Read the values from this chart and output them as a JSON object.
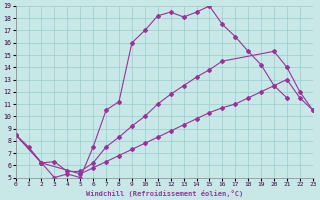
{
  "xlabel": "Windchill (Refroidissement éolien,°C)",
  "bg_color": "#c8e8e8",
  "grid_color": "#99cccc",
  "line_color": "#993399",
  "xlim": [
    0,
    23
  ],
  "ylim": [
    5,
    19
  ],
  "xticks": [
    0,
    1,
    2,
    3,
    4,
    5,
    6,
    7,
    8,
    9,
    10,
    11,
    12,
    13,
    14,
    15,
    16,
    17,
    18,
    19,
    20,
    21,
    22,
    23
  ],
  "yticks": [
    5,
    6,
    7,
    8,
    9,
    10,
    11,
    12,
    13,
    14,
    15,
    16,
    17,
    18,
    19
  ],
  "line1_x": [
    0,
    1,
    2,
    3,
    4,
    5,
    6,
    7,
    8,
    9,
    10,
    11,
    12,
    13,
    14,
    15,
    16,
    17,
    18,
    19,
    20,
    21
  ],
  "line1_y": [
    8.5,
    7.5,
    6.2,
    5.0,
    5.3,
    5.0,
    7.5,
    10.5,
    11.2,
    16.0,
    17.0,
    18.2,
    18.5,
    18.1,
    18.5,
    19.0,
    17.5,
    16.5,
    15.3,
    14.2,
    12.5,
    11.5
  ],
  "line2_x": [
    0,
    2,
    3,
    4,
    5,
    6,
    7,
    8,
    9,
    10,
    11,
    12,
    13,
    14,
    15,
    16,
    20,
    21,
    22,
    23
  ],
  "line2_y": [
    8.5,
    6.2,
    6.3,
    5.5,
    5.5,
    6.2,
    7.5,
    8.3,
    9.2,
    10.0,
    11.0,
    11.8,
    12.5,
    13.2,
    13.8,
    14.5,
    15.3,
    14.0,
    12.0,
    10.5
  ],
  "line3_x": [
    0,
    2,
    5,
    6,
    7,
    8,
    9,
    10,
    11,
    12,
    13,
    14,
    15,
    16,
    17,
    18,
    19,
    20,
    21,
    22,
    23
  ],
  "line3_y": [
    8.5,
    6.2,
    5.3,
    5.8,
    6.3,
    6.8,
    7.3,
    7.8,
    8.3,
    8.8,
    9.3,
    9.8,
    10.3,
    10.7,
    11.0,
    11.5,
    12.0,
    12.5,
    13.0,
    11.5,
    10.5
  ]
}
